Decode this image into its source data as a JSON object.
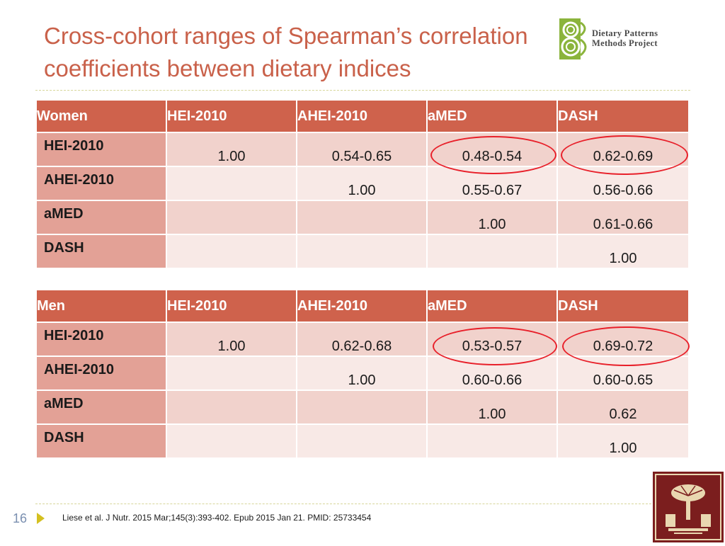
{
  "slide": {
    "title_line1": "Cross-cohort ranges of Spearman’s correlation",
    "title_line2": "coefficients between dietary indices",
    "page_number": "16",
    "citation": "Liese et al. J Nutr. 2015 Mar;145(3):393-402. Epub 2015 Jan 21. PMID:  25733454"
  },
  "logo": {
    "line1": "Dietary Patterns",
    "line2": "Methods Project"
  },
  "colors": {
    "title": "#c9614a",
    "header": "#cf624c",
    "row_label": "#e3a196",
    "highlight_ring": "#e8202a",
    "seal": "#7b1e1e"
  },
  "women": {
    "headers": [
      "Women",
      "HEI-2010",
      "AHEI-2010",
      "aMED",
      "DASH"
    ],
    "rows": [
      {
        "label": "HEI-2010",
        "cells": [
          "1.00",
          "0.54-0.65",
          "0.48-0.54",
          "0.62-0.69"
        ]
      },
      {
        "label": "AHEI-2010",
        "cells": [
          "",
          "1.00",
          "0.55-0.67",
          "0.56-0.66"
        ]
      },
      {
        "label": "aMED",
        "cells": [
          "",
          "",
          "1.00",
          "0.61-0.66"
        ]
      },
      {
        "label": "DASH",
        "cells": [
          "",
          "",
          "",
          "1.00"
        ]
      }
    ]
  },
  "men": {
    "headers": [
      "Men",
      "HEI-2010",
      "AHEI-2010",
      "aMED",
      "DASH"
    ],
    "rows": [
      {
        "label": "HEI-2010",
        "cells": [
          "1.00",
          "0.62-0.68",
          "0.53-0.57",
          "0.69-0.72"
        ]
      },
      {
        "label": "AHEI-2010",
        "cells": [
          "",
          "1.00",
          "0.60-0.66",
          "0.60-0.65"
        ]
      },
      {
        "label": "aMED",
        "cells": [
          "",
          "",
          "1.00",
          "0.62"
        ]
      },
      {
        "label": "DASH",
        "cells": [
          "",
          "",
          "",
          "1.00"
        ]
      }
    ]
  }
}
